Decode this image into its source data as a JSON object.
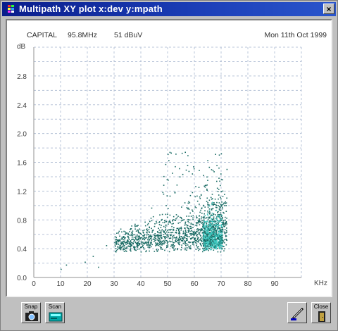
{
  "window": {
    "title": "Multipath XY plot x:dev y:mpath",
    "close_label": "×"
  },
  "plot": {
    "station": "CAPITAL",
    "frequency": "95.8MHz",
    "level": "51 dBuV",
    "date": "Mon 11th Oct 1999"
  },
  "chart_data": {
    "type": "scatter",
    "ylabel": "dB",
    "xlabel": "KHz",
    "xlim": [
      0,
      100
    ],
    "ylim": [
      0,
      3.2
    ],
    "x_ticks": [
      "0",
      "10",
      "20",
      "30",
      "40",
      "50",
      "60",
      "70",
      "80",
      "90"
    ],
    "y_ticks": [
      "0.0",
      "0.4",
      "0.8",
      "1.2",
      "1.6",
      "2.0",
      "2.4",
      "2.8"
    ],
    "grid": true,
    "colors": {
      "points": "#1a6b64",
      "dense": "#3ec8c0",
      "grid": "#b8c4d8"
    },
    "description_points": "dense scatter cloud between 25 and 72 KHz, 0.1 to 1.75 dB, densest near 65-70 KHz at 0.4-0.9 dB"
  },
  "toolbar": {
    "snap_label": "Snap",
    "scan_label": "Scan",
    "close_label": "Close",
    "icons": [
      "camera-icon",
      "scan-icon",
      "pen-icon",
      "door-icon"
    ]
  }
}
